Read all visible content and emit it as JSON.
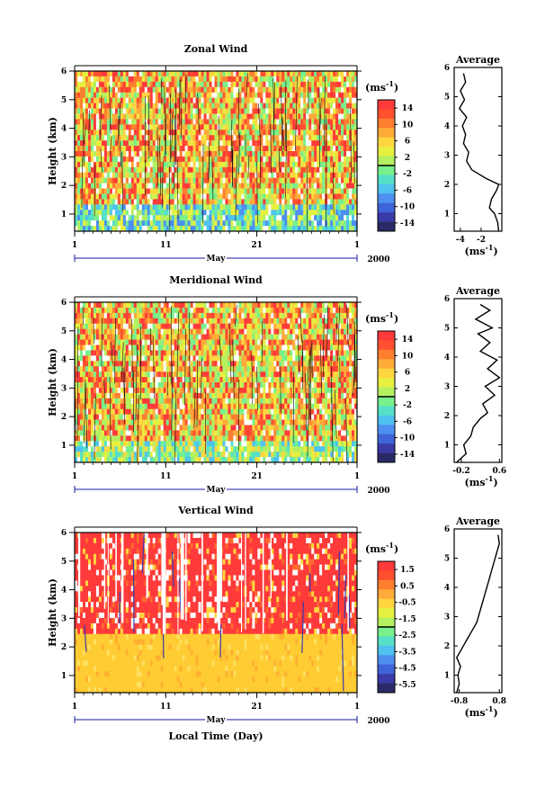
{
  "xlabel": "Local Time (Day)",
  "month_label": "May",
  "year_label": "2000",
  "avg_title": "Average",
  "unit_label": "(ms",
  "unit_exp": "-1",
  "ylabel": "Height (km)",
  "colors": {
    "colorbar": [
      "#2a2a66",
      "#3a3aa8",
      "#3f63d8",
      "#4e8ff0",
      "#4fc2f0",
      "#56e0c8",
      "#78f08c",
      "#b4f060",
      "#e6f040",
      "#ffd640",
      "#ffab3a",
      "#ff7f30",
      "#ff5030",
      "#ff3a3a"
    ],
    "vertical_upper": "#ff3a3a",
    "vertical_lower": "#ffcc33"
  },
  "chart_data": [
    {
      "type": "heatmap",
      "title": "Zonal Wind",
      "xlabel": "May",
      "ylabel": "Height (km)",
      "x_ticks": [
        "1",
        "11",
        "21",
        "1"
      ],
      "x_range_days": [
        1,
        32
      ],
      "y_ticks": [
        1,
        2,
        3,
        4,
        5,
        6
      ],
      "ylim": [
        0.4,
        6
      ],
      "colorbar": {
        "unit": "(ms-1)",
        "ticks": [
          "14",
          "10",
          "6",
          "2",
          "-2",
          "-6",
          "-10",
          "-14"
        ],
        "range": [
          -16,
          16
        ]
      },
      "profile": {
        "title": "Average",
        "xlabel": "(ms-1)",
        "x_ticks": [
          "-4",
          "-2"
        ],
        "xlim": [
          -4.6,
          0
        ],
        "height_km": [
          0.4,
          0.7,
          1.0,
          1.2,
          1.5,
          1.8,
          2.0,
          2.2,
          2.5,
          2.8,
          3.1,
          3.4,
          3.7,
          4.0,
          4.3,
          4.6,
          4.9,
          5.2,
          5.5,
          5.8
        ],
        "values": [
          -0.3,
          -0.4,
          -0.7,
          -1.2,
          -1.0,
          -0.5,
          -0.3,
          -1.5,
          -2.9,
          -3.4,
          -3.2,
          -3.7,
          -3.5,
          -3.8,
          -3.4,
          -4.1,
          -3.6,
          -4.0,
          -3.5,
          -3.7
        ]
      }
    },
    {
      "type": "heatmap",
      "title": "Meridional Wind",
      "xlabel": "May",
      "ylabel": "Height (km)",
      "x_ticks": [
        "1",
        "11",
        "21",
        "1"
      ],
      "x_range_days": [
        1,
        32
      ],
      "y_ticks": [
        1,
        2,
        3,
        4,
        5,
        6
      ],
      "ylim": [
        0.4,
        6
      ],
      "colorbar": {
        "unit": "(ms-1)",
        "ticks": [
          "14",
          "10",
          "6",
          "2",
          "-2",
          "-6",
          "-10",
          "-14"
        ],
        "range": [
          -16,
          16
        ]
      },
      "profile": {
        "title": "Average",
        "xlabel": "(ms-1)",
        "x_ticks": [
          "-0.2",
          "0.6"
        ],
        "xlim": [
          -0.35,
          0.65
        ],
        "height_km": [
          0.4,
          0.7,
          1.0,
          1.3,
          1.6,
          1.9,
          2.1,
          2.4,
          2.7,
          3.0,
          3.3,
          3.6,
          3.9,
          4.2,
          4.5,
          4.8,
          5.0,
          5.3,
          5.6,
          5.8
        ],
        "values": [
          -0.3,
          -0.1,
          -0.15,
          0.0,
          0.05,
          0.2,
          0.35,
          0.25,
          0.5,
          0.3,
          0.6,
          0.35,
          0.55,
          0.2,
          0.4,
          0.15,
          0.45,
          0.1,
          0.4,
          0.2
        ]
      }
    },
    {
      "type": "heatmap",
      "title": "Vertical Wind",
      "xlabel": "May",
      "ylabel": "Height (km)",
      "x_ticks": [
        "1",
        "11",
        "21",
        "1"
      ],
      "x_range_days": [
        1,
        32
      ],
      "y_ticks": [
        1,
        2,
        3,
        4,
        5,
        6
      ],
      "ylim": [
        0.4,
        6
      ],
      "colorbar": {
        "unit": "(ms-1)",
        "ticks": [
          "1.5",
          "0.5",
          "-0.5",
          "-1.5",
          "-2.5",
          "-3.5",
          "-4.5",
          "-5.5"
        ],
        "range": [
          -6,
          2
        ]
      },
      "profile": {
        "title": "Average",
        "xlabel": "(ms-1)",
        "x_ticks": [
          "-0.8",
          "0.8"
        ],
        "xlim": [
          -1.0,
          0.9
        ],
        "height_km": [
          0.4,
          0.7,
          1.0,
          1.3,
          1.6,
          1.9,
          2.2,
          2.5,
          2.8,
          3.1,
          3.4,
          3.7,
          4.0,
          4.3,
          4.6,
          4.9,
          5.2,
          5.5,
          5.8
        ],
        "values": [
          -0.9,
          -0.8,
          -0.85,
          -0.75,
          -0.9,
          -0.7,
          -0.5,
          -0.3,
          -0.1,
          0.0,
          0.1,
          0.2,
          0.3,
          0.4,
          0.5,
          0.6,
          0.7,
          0.8,
          0.75
        ]
      }
    }
  ]
}
